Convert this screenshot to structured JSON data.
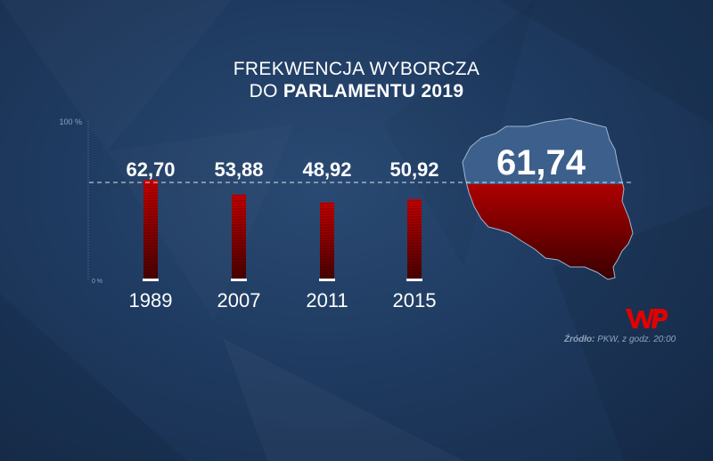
{
  "title_line1": "FREKWENCJA WYBORCZA",
  "title_line2_prefix": "DO ",
  "title_line2_bold": "PARLAMENTU 2019",
  "source_label": "Źródło:",
  "source_text": " PKW, z godz. 20:00",
  "logo_text": "WP",
  "colors": {
    "bar": "#c40000",
    "bar_dark": "#4a0000",
    "text": "#ffffff",
    "axis": "#8ea3bd",
    "map_top": "#3d5f8c",
    "map_red": "#e30000"
  },
  "chart_data": {
    "type": "bar",
    "categories": [
      "1989",
      "2007",
      "2011",
      "2015"
    ],
    "values": [
      62.7,
      53.88,
      48.92,
      50.92
    ],
    "value_labels": [
      "62,70",
      "53,88",
      "48,92",
      "50,92"
    ],
    "ylim": [
      0,
      100
    ],
    "ytick_labels": [
      "100 %",
      "0 %"
    ],
    "reference_value": 61.74,
    "reference_label": "61,74",
    "title": "FREKWENCJA WYBORCZA DO PARLAMENTU 2019",
    "xlabel": "",
    "ylabel": "",
    "grid": false
  }
}
